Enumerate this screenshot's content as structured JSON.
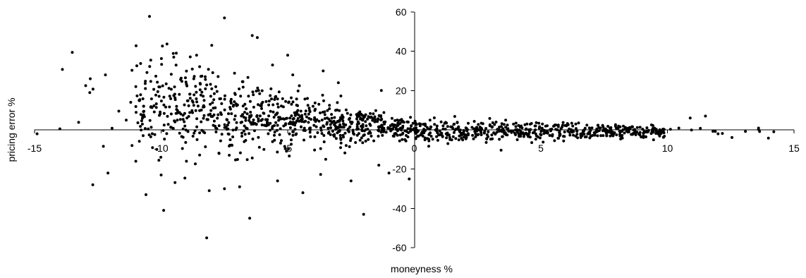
{
  "chart_data": {
    "type": "scatter",
    "title": "",
    "xlabel": "moneyness %",
    "ylabel": "pricing error %",
    "xlim": [
      -15,
      15
    ],
    "ylim": [
      -60,
      60
    ],
    "x_ticks": [
      -15,
      -10,
      -5,
      0,
      5,
      10,
      15
    ],
    "y_ticks": [
      -60,
      -40,
      -20,
      20,
      40,
      60
    ],
    "grid": false,
    "legend": "none",
    "point_color": "#000000",
    "series": [
      {
        "points": [
          [
            -14.9,
            -2
          ],
          [
            -14.0,
            0.5
          ],
          [
            -12.8,
            26
          ],
          [
            -12.2,
            28
          ],
          [
            -12.7,
            -28
          ],
          [
            -12.1,
            -22
          ],
          [
            -11.2,
            14
          ],
          [
            -11.0,
            22
          ],
          [
            -10.6,
            -33
          ],
          [
            -9.9,
            -41
          ],
          [
            -8.2,
            -55
          ],
          [
            -7.5,
            57
          ],
          [
            -6.5,
            -45
          ],
          [
            -6.4,
            48
          ],
          [
            -6.2,
            47
          ],
          [
            -5.0,
            38
          ],
          [
            -3.6,
            30
          ],
          [
            -2.0,
            -43
          ],
          [
            -1.0,
            -22
          ],
          [
            -0.2,
            -25
          ],
          [
            12.0,
            -2
          ],
          [
            14.2,
            -1
          ],
          [
            11.5,
            7
          ],
          [
            10.9,
            6
          ],
          [
            -9.4,
            39
          ],
          [
            -9.5,
            37
          ],
          [
            -8.6,
            38
          ],
          [
            -8.0,
            43
          ],
          [
            -5.6,
            33
          ],
          [
            -4.8,
            28
          ],
          [
            -3.0,
            24
          ],
          [
            -1.3,
            20
          ],
          [
            -9.0,
            -16
          ],
          [
            -10.0,
            -23
          ],
          [
            -11.0,
            -16
          ],
          [
            -8.1,
            -31
          ],
          [
            -7.5,
            -30
          ],
          [
            -6.9,
            -29
          ],
          [
            -5.4,
            -26
          ],
          [
            -4.4,
            -32
          ],
          [
            -3.5,
            -15
          ],
          [
            -2.5,
            -26
          ],
          [
            -1.4,
            -18
          ]
        ]
      }
    ],
    "generated_cloud_note_free": true
  }
}
